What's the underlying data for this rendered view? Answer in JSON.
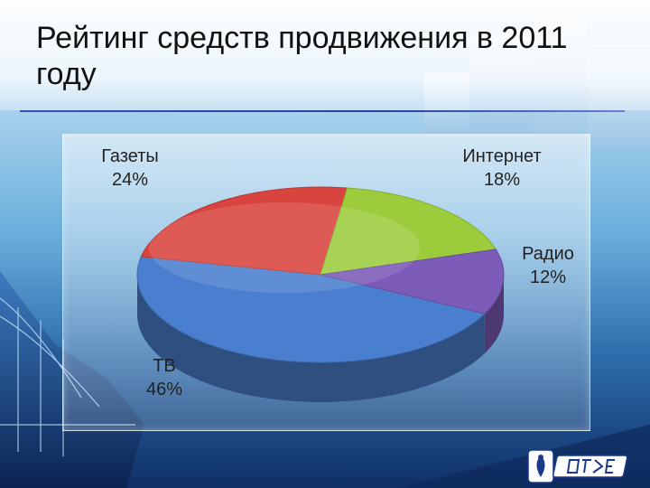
{
  "slide": {
    "title": "Рейтинг средств продвижения в 2011 году"
  },
  "chart_data": {
    "type": "pie",
    "title": "",
    "series": [
      {
        "label": "ТВ",
        "value": 46,
        "value_label": "46%",
        "color": "#4a7fcf"
      },
      {
        "label": "Газеты",
        "value": 24,
        "value_label": "24%",
        "color": "#d9443e"
      },
      {
        "label": "Интернет",
        "value": 18,
        "value_label": "18%",
        "color": "#9ccc3c"
      },
      {
        "label": "Радио",
        "value": 12,
        "value_label": "12%",
        "color": "#7d5bb8"
      }
    ]
  },
  "logo": {
    "icon": "university-emblem-icon",
    "text_icon": "vgues-logotype-icon"
  }
}
